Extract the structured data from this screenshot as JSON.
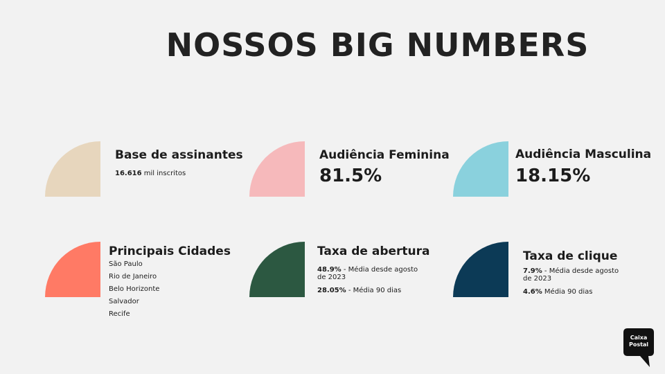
{
  "title": "NOSSOS BIG NUMBERS",
  "cards": {
    "base": {
      "color": "#e7d6bd",
      "title": "Base de assinantes",
      "stat_strong": "16.616",
      "stat_rest": " mil inscritos"
    },
    "feminina": {
      "color": "#f6b9bb",
      "title": "Audiência Feminina",
      "big": "81.5%"
    },
    "masculina": {
      "color": "#8ad1dd",
      "title": "Audiência Masculina",
      "big": "18.15%"
    },
    "cidades": {
      "color": "#ff7a65",
      "title": "Principais Cidades",
      "items": [
        "São Paulo",
        "Rio de Janeiro",
        "Belo Horizonte",
        "Salvador",
        "Recife"
      ]
    },
    "abertura": {
      "color": "#2c5841",
      "title": "Taxa de abertura",
      "line1_strong": "48.9%",
      "line1_rest": " - Média desde agosto",
      "line1_cont": "de 2023",
      "line2_strong": "28.05%",
      "line2_rest": " - Média 90 dias"
    },
    "clique": {
      "color": "#0c3a56",
      "title": "Taxa de clique",
      "line1_strong": "7.9%",
      "line1_rest": " - Média desde agosto",
      "line1_cont": "de 2023",
      "line2_strong": "4.6%",
      "line2_rest": " Média 90 dias"
    }
  },
  "logo": {
    "line1": "Caixa",
    "line2": "Postal",
    "color": "#111111",
    "icon": "speech-bubble-icon"
  }
}
